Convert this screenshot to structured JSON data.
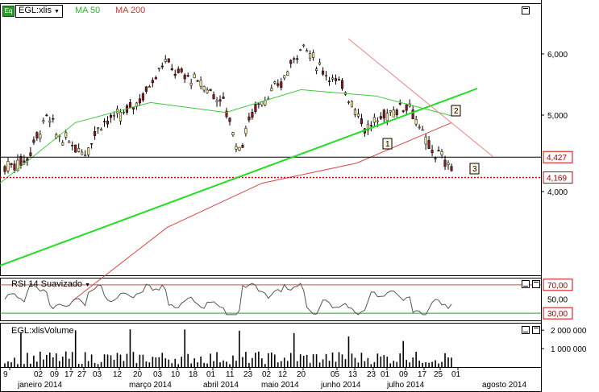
{
  "header": {
    "symbol": "EGL:xlis",
    "ma50_label": "MA 50",
    "ma200_label": "MA 200",
    "logo_text": "Eq"
  },
  "rsi_panel": {
    "title": "RSI 14 Suavizado"
  },
  "volume_panel": {
    "title": "EGL:xlisVolume"
  },
  "colors": {
    "up": "#f5e8a0",
    "down": "#8b1a1a",
    "ma50": "#3ec83e",
    "ma200": "#e04545",
    "trend": "#22dd22",
    "downtrend": "#ee8080",
    "support": "#000000",
    "last": "#d40000"
  },
  "chart_data": [
    {
      "type": "candlestick",
      "title": "EGL:xlis",
      "y_ticks": [
        "4,000",
        "5,000",
        "6,000"
      ],
      "price_labels": [
        "4,427",
        "4,169"
      ],
      "annotations": [
        "1",
        "2",
        "3"
      ],
      "x_ticks": [
        "9",
        "02",
        "09",
        "17",
        "27",
        "03",
        "12",
        "20",
        "03",
        "10",
        "18",
        "01",
        "11",
        "23",
        "02",
        "12",
        "20",
        "05",
        "13",
        "23",
        "01",
        "09",
        "17",
        "25",
        "01",
        "agosto 2014"
      ],
      "month_labels": [
        "janeiro 2014",
        "março 2014",
        "abril 2014",
        "maio 2014",
        "junho 2014",
        "julho 2014",
        "agosto 2014"
      ],
      "series": [
        {
          "name": "MA 50",
          "values": [
            4.1,
            4.9,
            5.2,
            5.05,
            5.4,
            5.3,
            5.0
          ]
        },
        {
          "name": "MA 200",
          "values": [
            2.9,
            3.6,
            4.1,
            4.35,
            4.9
          ]
        }
      ],
      "support_level": 4.427,
      "last_price": 4.169
    },
    {
      "type": "line",
      "title": "RSI 14 Suavizado",
      "y_ticks": [
        "70,00",
        "50,00",
        "30,00"
      ],
      "overbought": 70,
      "oversold": 30,
      "ylim": [
        20,
        80
      ]
    },
    {
      "type": "bar",
      "title": "EGL:xlisVolume",
      "y_ticks": [
        "2 000 000",
        "1 000 000"
      ],
      "ylim": [
        0,
        2400000
      ]
    }
  ]
}
